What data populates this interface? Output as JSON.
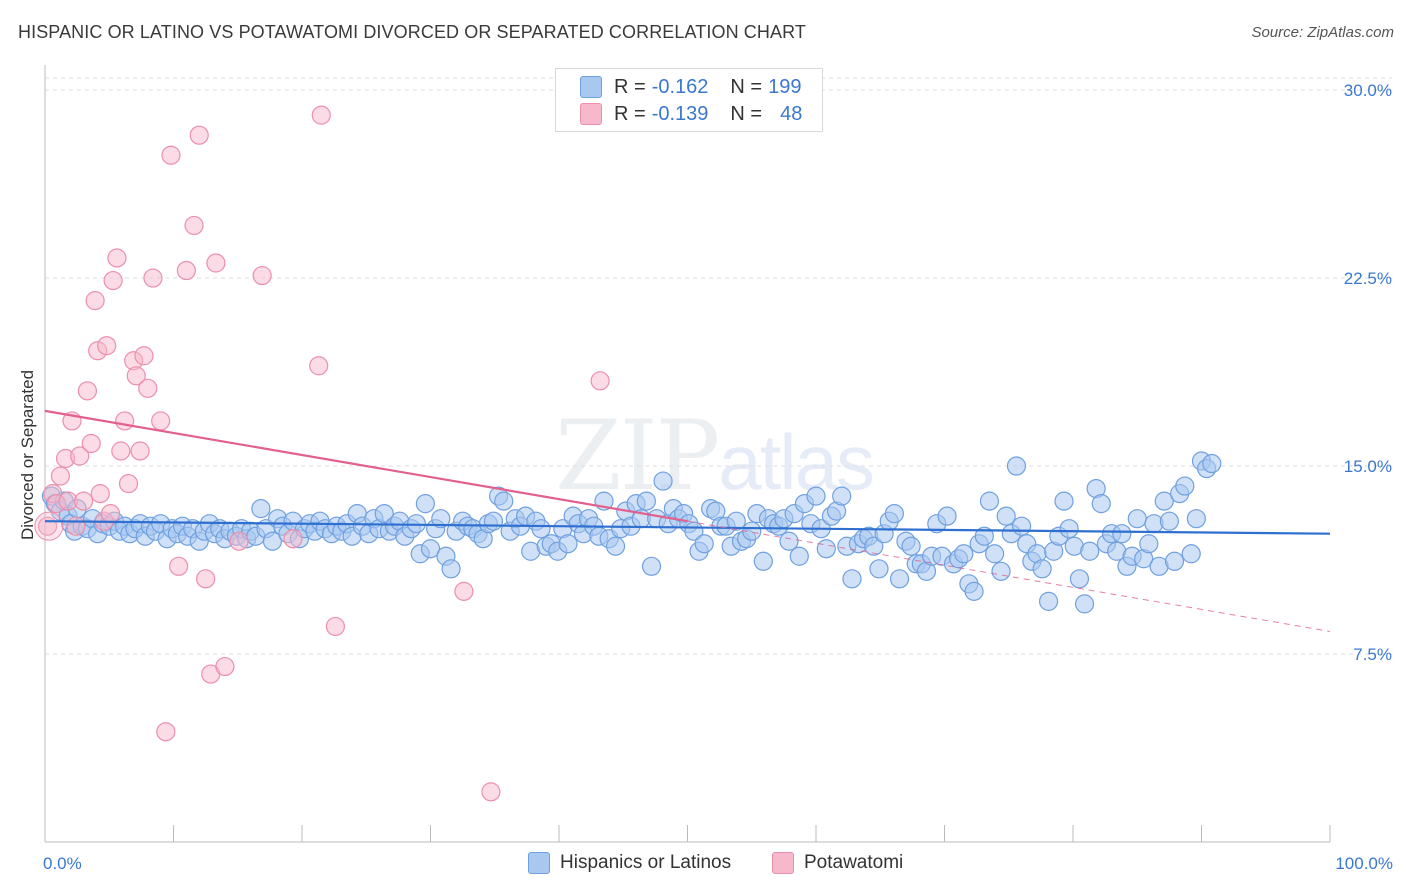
{
  "header": {
    "title": "HISPANIC OR LATINO VS POTAWATOMI DIVORCED OR SEPARATED CORRELATION CHART",
    "source": "Source: ZipAtlas.com"
  },
  "watermark": {
    "zip": "ZIP",
    "atlas": "atlas"
  },
  "legend": {
    "rows": [
      {
        "r_label": "R =",
        "r_value": "-0.162",
        "n_label": "N =",
        "n_value": "199"
      },
      {
        "r_label": "R =",
        "r_value": "-0.139",
        "n_label": "N =",
        "n_value": "48"
      }
    ]
  },
  "bottom_legend": {
    "series1": "Hispanics or Latinos",
    "series2": "Potawatomi"
  },
  "colors": {
    "blue_fill": "#a9c8f0",
    "blue_stroke": "#6fa0e0",
    "blue_line": "#2e6fd0",
    "pink_fill": "#f7b8cb",
    "pink_stroke": "#ec8fab",
    "pink_line": "#e2608e",
    "axis_text": "#3a78d0",
    "grid": "#dedede"
  },
  "chart_data": {
    "type": "scatter",
    "title": "HISPANIC OR LATINO VS POTAWATOMI DIVORCED OR SEPARATED CORRELATION CHART",
    "xlabel": "",
    "ylabel": "Divorced or Separated",
    "xlim": [
      0,
      100
    ],
    "ylim": [
      0,
      31
    ],
    "x_tick_labels": [
      "0.0%",
      "100.0%"
    ],
    "y_ticks": [
      7.5,
      15.0,
      22.5,
      30.0
    ],
    "y_tick_labels": [
      "7.5%",
      "15.0%",
      "22.5%",
      "30.0%"
    ],
    "grid": true,
    "series": [
      {
        "name": "Hispanics or Latinos",
        "R": -0.162,
        "N": 199,
        "trend": {
          "x": [
            0,
            100
          ],
          "y": [
            12.8,
            12.3
          ]
        },
        "points": [
          [
            0.5,
            13.8
          ],
          [
            0.8,
            13.5
          ],
          [
            1.2,
            13.2
          ],
          [
            1.5,
            13.6
          ],
          [
            1.8,
            13.0
          ],
          [
            2,
            12.7
          ],
          [
            2.3,
            12.4
          ],
          [
            2.5,
            13.3
          ],
          [
            2.9,
            12.6
          ],
          [
            3.3,
            12.5
          ],
          [
            3.7,
            12.9
          ],
          [
            4.1,
            12.3
          ],
          [
            4.5,
            12.7
          ],
          [
            5,
            12.6
          ],
          [
            5.4,
            12.8
          ],
          [
            5.8,
            12.4
          ],
          [
            6.2,
            12.6
          ],
          [
            6.6,
            12.3
          ],
          [
            7,
            12.5
          ],
          [
            7.4,
            12.7
          ],
          [
            7.8,
            12.2
          ],
          [
            8.2,
            12.6
          ],
          [
            8.6,
            12.4
          ],
          [
            9,
            12.7
          ],
          [
            9.5,
            12.1
          ],
          [
            9.9,
            12.5
          ],
          [
            10.3,
            12.3
          ],
          [
            10.7,
            12.6
          ],
          [
            11.1,
            12.2
          ],
          [
            11.5,
            12.5
          ],
          [
            12,
            12.0
          ],
          [
            12.4,
            12.4
          ],
          [
            12.8,
            12.7
          ],
          [
            13.2,
            12.3
          ],
          [
            13.6,
            12.5
          ],
          [
            14,
            12.1
          ],
          [
            14.4,
            12.4
          ],
          [
            14.9,
            12.2
          ],
          [
            15.3,
            12.5
          ],
          [
            15.7,
            12.1
          ],
          [
            16,
            12.4
          ],
          [
            16.4,
            12.2
          ],
          [
            16.8,
            13.3
          ],
          [
            17.2,
            12.5
          ],
          [
            17.7,
            12.0
          ],
          [
            18.1,
            12.9
          ],
          [
            18.5,
            12.6
          ],
          [
            18.9,
            12.3
          ],
          [
            19.3,
            12.8
          ],
          [
            19.8,
            12.1
          ],
          [
            20.2,
            12.5
          ],
          [
            20.6,
            12.7
          ],
          [
            21,
            12.4
          ],
          [
            21.4,
            12.8
          ],
          [
            21.8,
            12.5
          ],
          [
            22.3,
            12.3
          ],
          [
            22.7,
            12.6
          ],
          [
            23.1,
            12.4
          ],
          [
            23.5,
            12.7
          ],
          [
            23.9,
            12.2
          ],
          [
            24.3,
            13.1
          ],
          [
            24.7,
            12.6
          ],
          [
            25.2,
            12.3
          ],
          [
            25.6,
            12.9
          ],
          [
            26,
            12.5
          ],
          [
            26.4,
            13.1
          ],
          [
            26.8,
            12.4
          ],
          [
            27.2,
            12.6
          ],
          [
            27.6,
            12.8
          ],
          [
            28,
            12.2
          ],
          [
            28.5,
            12.5
          ],
          [
            28.9,
            12.7
          ],
          [
            29.2,
            11.5
          ],
          [
            29.6,
            13.5
          ],
          [
            30,
            11.7
          ],
          [
            30.4,
            12.5
          ],
          [
            30.8,
            12.9
          ],
          [
            31.2,
            11.4
          ],
          [
            31.6,
            10.9
          ],
          [
            32,
            12.4
          ],
          [
            32.5,
            12.8
          ],
          [
            32.9,
            12.6
          ],
          [
            33.3,
            12.5
          ],
          [
            33.7,
            12.3
          ],
          [
            34.1,
            12.1
          ],
          [
            34.5,
            12.7
          ],
          [
            34.9,
            12.8
          ],
          [
            35.3,
            13.8
          ],
          [
            35.7,
            13.6
          ],
          [
            36.2,
            12.4
          ],
          [
            36.6,
            12.9
          ],
          [
            37,
            12.6
          ],
          [
            37.4,
            13.0
          ],
          [
            37.8,
            11.6
          ],
          [
            38.2,
            12.8
          ],
          [
            38.6,
            12.5
          ],
          [
            39,
            11.8
          ],
          [
            39.4,
            11.9
          ],
          [
            39.9,
            11.6
          ],
          [
            40.3,
            12.5
          ],
          [
            40.7,
            11.9
          ],
          [
            41.1,
            13.0
          ],
          [
            41.5,
            12.7
          ],
          [
            41.9,
            12.3
          ],
          [
            42.3,
            12.9
          ],
          [
            42.7,
            12.6
          ],
          [
            43.1,
            12.2
          ],
          [
            43.5,
            13.6
          ],
          [
            43.9,
            12.1
          ],
          [
            44.4,
            11.8
          ],
          [
            44.8,
            12.5
          ],
          [
            45.2,
            13.2
          ],
          [
            45.6,
            12.6
          ],
          [
            46,
            13.5
          ],
          [
            46.4,
            12.9
          ],
          [
            46.8,
            13.6
          ],
          [
            47.2,
            11.0
          ],
          [
            47.6,
            12.9
          ],
          [
            48.1,
            14.4
          ],
          [
            48.5,
            12.7
          ],
          [
            48.9,
            13.3
          ],
          [
            49.3,
            12.9
          ],
          [
            49.7,
            13.1
          ],
          [
            50.1,
            12.7
          ],
          [
            50.5,
            12.4
          ],
          [
            50.9,
            11.6
          ],
          [
            51.3,
            11.9
          ],
          [
            51.8,
            13.3
          ],
          [
            52.2,
            13.2
          ],
          [
            52.6,
            12.6
          ],
          [
            53,
            12.6
          ],
          [
            53.4,
            11.8
          ],
          [
            53.8,
            12.8
          ],
          [
            54.2,
            12.0
          ],
          [
            54.6,
            12.1
          ],
          [
            55,
            12.4
          ],
          [
            55.4,
            13.1
          ],
          [
            55.9,
            11.2
          ],
          [
            56.3,
            12.9
          ],
          [
            56.7,
            12.7
          ],
          [
            57.1,
            12.6
          ],
          [
            57.5,
            12.9
          ],
          [
            57.9,
            12.0
          ],
          [
            58.3,
            13.1
          ],
          [
            58.7,
            11.4
          ],
          [
            59.1,
            13.5
          ],
          [
            59.6,
            12.7
          ],
          [
            60,
            13.8
          ],
          [
            60.4,
            12.5
          ],
          [
            60.8,
            11.7
          ],
          [
            61.2,
            13.0
          ],
          [
            61.6,
            13.2
          ],
          [
            62,
            13.8
          ],
          [
            62.4,
            11.8
          ],
          [
            62.8,
            10.5
          ],
          [
            63.3,
            11.9
          ],
          [
            63.7,
            12.1
          ],
          [
            64.1,
            12.2
          ],
          [
            64.5,
            11.8
          ],
          [
            64.9,
            10.9
          ],
          [
            65.3,
            12.3
          ],
          [
            65.7,
            12.8
          ],
          [
            66.1,
            13.1
          ],
          [
            66.5,
            10.5
          ],
          [
            67,
            12.0
          ],
          [
            67.4,
            11.8
          ],
          [
            67.8,
            11.1
          ],
          [
            68.2,
            11.1
          ],
          [
            68.6,
            10.8
          ],
          [
            69,
            11.4
          ],
          [
            69.4,
            12.7
          ],
          [
            69.8,
            11.4
          ],
          [
            70.2,
            13.0
          ],
          [
            70.7,
            11.1
          ],
          [
            71.1,
            11.3
          ],
          [
            71.5,
            11.5
          ],
          [
            71.9,
            10.3
          ],
          [
            72.3,
            10.0
          ],
          [
            72.7,
            11.9
          ],
          [
            73.1,
            12.2
          ],
          [
            73.5,
            13.6
          ],
          [
            73.9,
            11.5
          ],
          [
            74.4,
            10.8
          ],
          [
            74.8,
            13.0
          ],
          [
            75.2,
            12.3
          ],
          [
            75.6,
            15.0
          ],
          [
            76,
            12.6
          ],
          [
            76.4,
            11.9
          ],
          [
            76.8,
            11.2
          ],
          [
            77.2,
            11.5
          ],
          [
            77.6,
            10.9
          ],
          [
            78.1,
            9.6
          ],
          [
            78.5,
            11.6
          ],
          [
            78.9,
            12.2
          ],
          [
            79.3,
            13.6
          ],
          [
            79.7,
            12.5
          ],
          [
            80.1,
            11.8
          ],
          [
            80.5,
            10.5
          ],
          [
            80.9,
            9.5
          ],
          [
            81.3,
            11.6
          ],
          [
            81.8,
            14.1
          ],
          [
            82.2,
            13.5
          ],
          [
            82.6,
            11.9
          ],
          [
            83,
            12.3
          ],
          [
            83.4,
            11.6
          ],
          [
            83.8,
            12.3
          ],
          [
            84.2,
            11.0
          ],
          [
            84.6,
            11.4
          ],
          [
            85,
            12.9
          ],
          [
            85.5,
            11.3
          ],
          [
            85.9,
            11.9
          ],
          [
            86.3,
            12.7
          ],
          [
            86.7,
            11.0
          ],
          [
            87.1,
            13.6
          ],
          [
            87.5,
            12.8
          ],
          [
            87.9,
            11.2
          ],
          [
            88.3,
            13.9
          ],
          [
            88.7,
            14.2
          ],
          [
            89.2,
            11.5
          ],
          [
            89.6,
            12.9
          ],
          [
            90,
            15.2
          ],
          [
            90.4,
            14.9
          ],
          [
            90.8,
            15.1
          ]
        ]
      },
      {
        "name": "Potawatomi",
        "R": -0.139,
        "N": 48,
        "trend": {
          "x": [
            0,
            50
          ],
          "y": [
            17.2,
            12.8
          ]
        },
        "trend_dashed": {
          "x": [
            50,
            100
          ],
          "y": [
            12.8,
            8.4
          ]
        },
        "points": [
          [
            0.2,
            12.6
          ],
          [
            0.6,
            13.9
          ],
          [
            0.9,
            13.5
          ],
          [
            1.2,
            14.6
          ],
          [
            1.6,
            15.3
          ],
          [
            1.8,
            13.6
          ],
          [
            2.1,
            16.8
          ],
          [
            2.4,
            12.6
          ],
          [
            2.7,
            15.4
          ],
          [
            3.0,
            13.6
          ],
          [
            3.3,
            18.0
          ],
          [
            3.6,
            15.9
          ],
          [
            3.9,
            21.6
          ],
          [
            4.1,
            19.6
          ],
          [
            4.3,
            13.9
          ],
          [
            4.6,
            12.8
          ],
          [
            4.8,
            19.8
          ],
          [
            5.1,
            13.1
          ],
          [
            5.3,
            22.4
          ],
          [
            5.6,
            23.3
          ],
          [
            5.9,
            15.6
          ],
          [
            6.2,
            16.8
          ],
          [
            6.5,
            14.3
          ],
          [
            6.9,
            19.2
          ],
          [
            7.1,
            18.6
          ],
          [
            7.4,
            15.6
          ],
          [
            7.7,
            19.4
          ],
          [
            8.0,
            18.1
          ],
          [
            8.4,
            22.5
          ],
          [
            9.0,
            16.8
          ],
          [
            9.4,
            4.4
          ],
          [
            9.8,
            27.4
          ],
          [
            10.4,
            11.0
          ],
          [
            11.0,
            22.8
          ],
          [
            11.6,
            24.6
          ],
          [
            12.0,
            28.2
          ],
          [
            12.5,
            10.5
          ],
          [
            12.9,
            6.7
          ],
          [
            13.3,
            23.1
          ],
          [
            14.0,
            7.0
          ],
          [
            15.1,
            12.0
          ],
          [
            16.9,
            22.6
          ],
          [
            19.3,
            12.1
          ],
          [
            21.3,
            19.0
          ],
          [
            21.5,
            29.0
          ],
          [
            22.6,
            8.6
          ],
          [
            32.6,
            10.0
          ],
          [
            34.7,
            2.0
          ],
          [
            43.2,
            18.4
          ]
        ]
      }
    ]
  }
}
